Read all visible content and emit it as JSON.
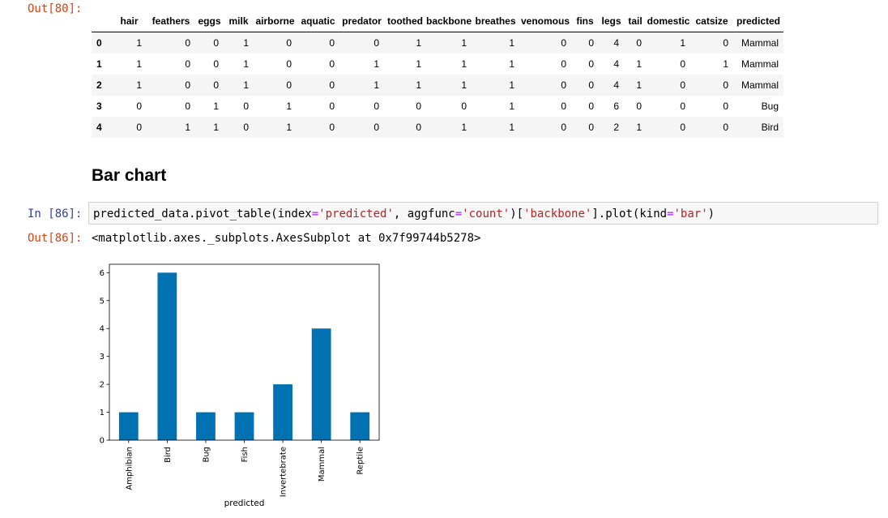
{
  "cells": {
    "out80_prompt": "Out[80]:",
    "in86_prompt": "In [86]:",
    "out86_prompt": "Out[86]:",
    "section_heading": "Bar chart",
    "code": {
      "t1": "predicted_data.pivot_table(index",
      "t2": "=",
      "t3": "'predicted'",
      "t4": ", aggfunc",
      "t5": "=",
      "t6": "'count'",
      "t7": ")[",
      "t8": "'backbone'",
      "t9": "].plot(kind",
      "t10": "=",
      "t11": "'bar'",
      "t12": ")"
    },
    "out86_text": "<matplotlib.axes._subplots.AxesSubplot at 0x7f99744b5278>"
  },
  "dataframe": {
    "columns": [
      "hair",
      "feathers",
      "eggs",
      "milk",
      "airborne",
      "aquatic",
      "predator",
      "toothed",
      "backbone",
      "breathes",
      "venomous",
      "fins",
      "legs",
      "tail",
      "domestic",
      "catsize",
      "predicted"
    ],
    "rows": [
      {
        "index": "0",
        "values": [
          "1",
          "0",
          "0",
          "1",
          "0",
          "0",
          "0",
          "1",
          "1",
          "1",
          "0",
          "0",
          "4",
          "0",
          "1",
          "0",
          "Mammal"
        ]
      },
      {
        "index": "1",
        "values": [
          "1",
          "0",
          "0",
          "1",
          "0",
          "0",
          "1",
          "1",
          "1",
          "1",
          "0",
          "0",
          "4",
          "1",
          "0",
          "1",
          "Mammal"
        ]
      },
      {
        "index": "2",
        "values": [
          "1",
          "0",
          "0",
          "1",
          "0",
          "0",
          "1",
          "1",
          "1",
          "1",
          "0",
          "0",
          "4",
          "1",
          "0",
          "0",
          "Mammal"
        ]
      },
      {
        "index": "3",
        "values": [
          "0",
          "0",
          "1",
          "0",
          "1",
          "0",
          "0",
          "0",
          "0",
          "1",
          "0",
          "0",
          "6",
          "0",
          "0",
          "0",
          "Bug"
        ]
      },
      {
        "index": "4",
        "values": [
          "0",
          "1",
          "1",
          "0",
          "1",
          "0",
          "0",
          "0",
          "1",
          "1",
          "0",
          "0",
          "2",
          "1",
          "0",
          "0",
          "Bird"
        ]
      }
    ]
  },
  "chart_data": {
    "type": "bar",
    "categories": [
      "Amphibian",
      "Bird",
      "Bug",
      "Fish",
      "Invertebrate",
      "Mammal",
      "Reptile"
    ],
    "values": [
      1,
      6,
      1,
      1,
      2,
      4,
      1
    ],
    "xlabel": "predicted",
    "ylabel": "",
    "ylim": [
      0,
      6.3
    ],
    "yticks": [
      "0",
      "1",
      "2",
      "3",
      "4",
      "5",
      "6"
    ],
    "bar_color": "#0072b2",
    "grid": false,
    "legend": "none"
  }
}
